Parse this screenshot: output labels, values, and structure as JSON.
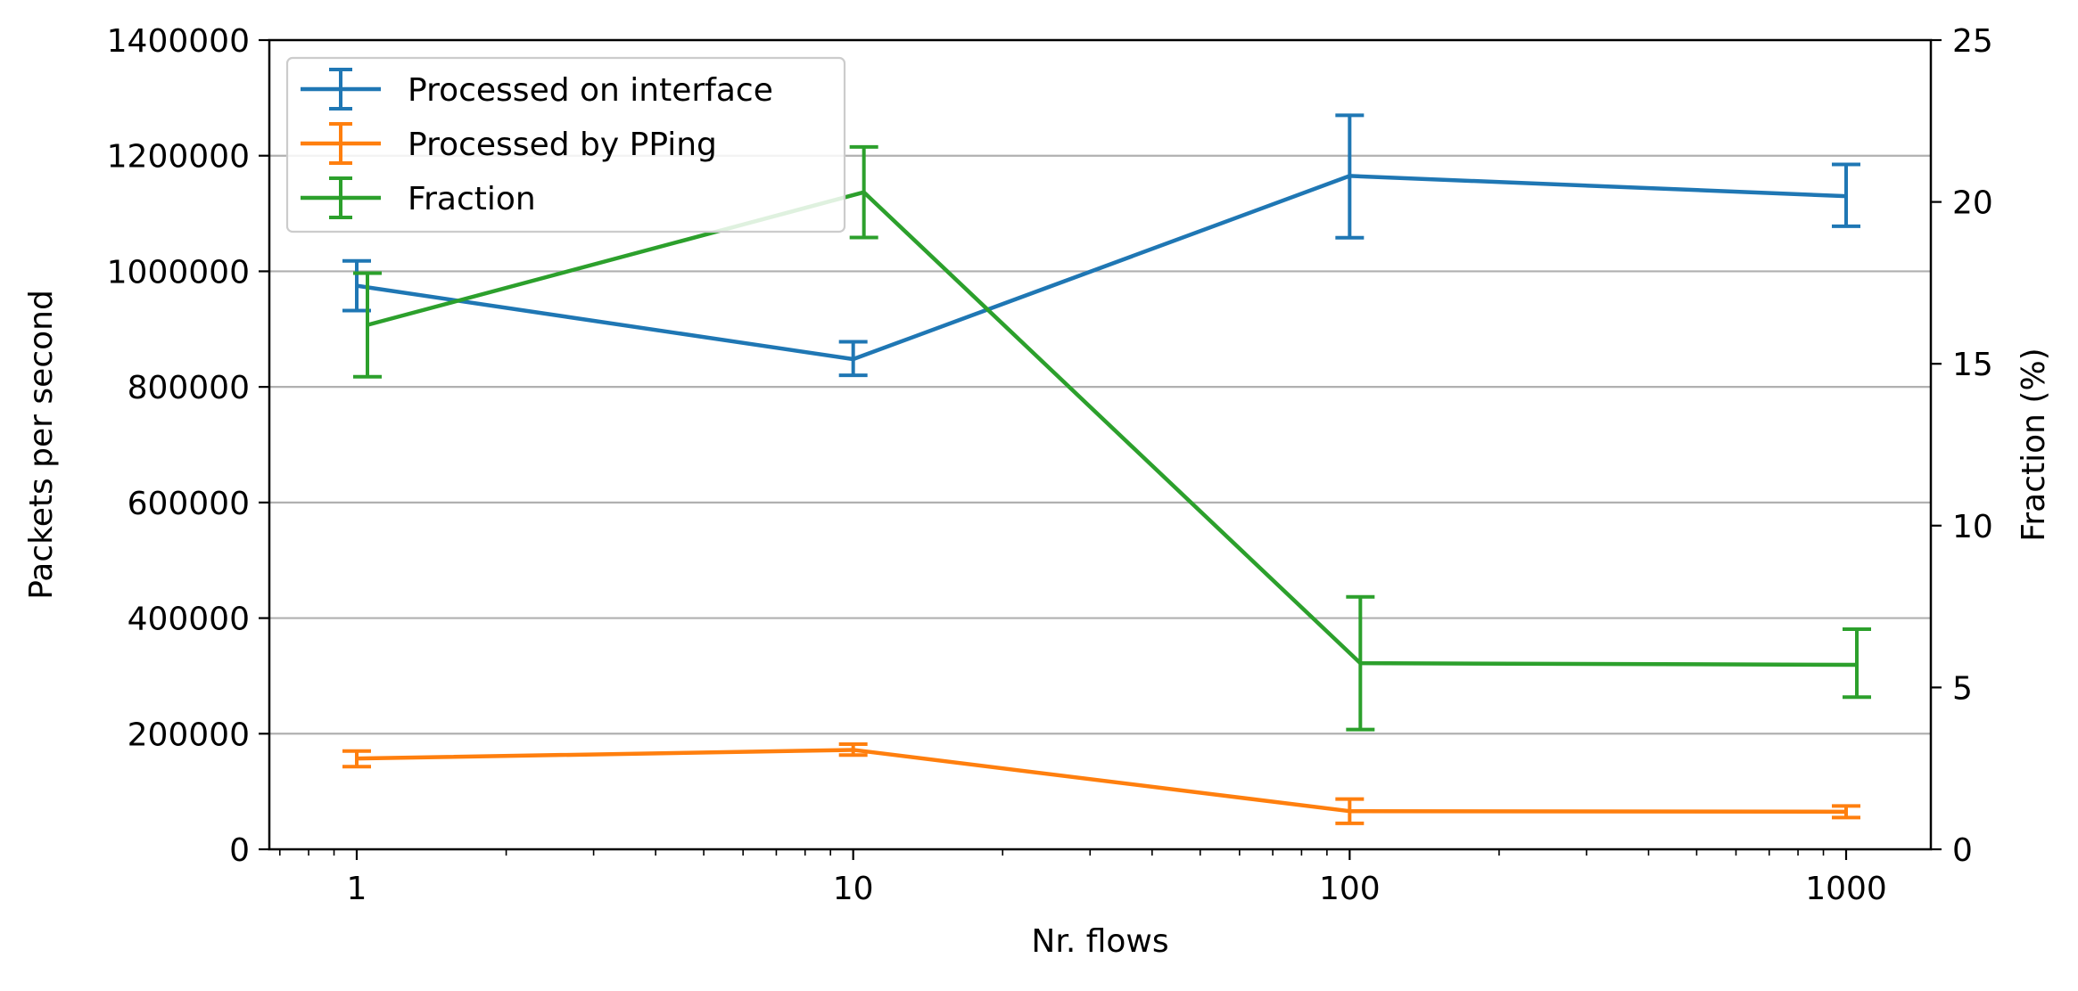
{
  "chart_data": {
    "type": "line",
    "x_scale": "log",
    "x": [
      1,
      10,
      100,
      1000
    ],
    "x_ticks": [
      "1",
      "10",
      "100",
      "1000"
    ],
    "xlabel": "Nr. flows",
    "ylabel": "Packets per second",
    "y2label": "Fraction (%)",
    "ylim": [
      0,
      1400000
    ],
    "y_ticks": [
      "0",
      "200000",
      "400000",
      "600000",
      "800000",
      "1000000",
      "1200000",
      "1400000"
    ],
    "y2lim": [
      0,
      25
    ],
    "y2_ticks": [
      "0",
      "5",
      "10",
      "15",
      "20",
      "25"
    ],
    "grid": "horizontal major (left axis)",
    "legend_position": "top-left",
    "series": [
      {
        "name": "Processed on interface",
        "axis": "left",
        "color": "#1f77b4",
        "values": [
          975000,
          848000,
          1165000,
          1130000
        ],
        "err_low": [
          932000,
          820000,
          1058000,
          1078000
        ],
        "err_high": [
          1018000,
          878000,
          1270000,
          1185000
        ]
      },
      {
        "name": "Processed by PPing",
        "axis": "left",
        "color": "#ff7f0e",
        "values": [
          157000,
          172000,
          66000,
          65000
        ],
        "err_low": [
          143000,
          163000,
          45000,
          55000
        ],
        "err_high": [
          170000,
          182000,
          87000,
          75000
        ]
      },
      {
        "name": "Fraction",
        "axis": "right",
        "color": "#2ca02c",
        "values": [
          16.2,
          20.3,
          5.75,
          5.7
        ],
        "err_low": [
          14.6,
          18.9,
          3.7,
          4.7
        ],
        "err_high": [
          17.8,
          21.7,
          7.8,
          6.8
        ]
      }
    ]
  }
}
